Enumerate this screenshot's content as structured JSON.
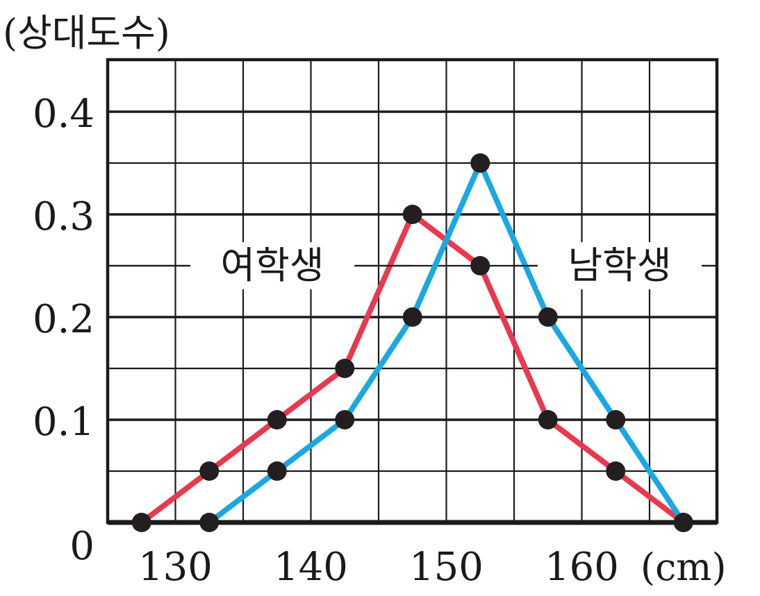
{
  "chart_data": {
    "type": "line",
    "ylabel": "(상대도수)",
    "xunit": "(cm)",
    "x_ticks": [
      "130",
      "140",
      "150",
      "160"
    ],
    "y_ticks": [
      "0",
      "0.1",
      "0.2",
      "0.3",
      "0.4"
    ],
    "xlim": [
      125,
      170
    ],
    "ylim": [
      0,
      0.45
    ],
    "x_grid_step": 5,
    "y_grid_step": 0.05,
    "grid": true,
    "series": [
      {
        "name": "여학생",
        "color": "#e8394f",
        "x": [
          127.5,
          132.5,
          137.5,
          142.5,
          147.5,
          152.5,
          157.5,
          162.5,
          167.5
        ],
        "y": [
          0,
          0.05,
          0.1,
          0.15,
          0.3,
          0.25,
          0.1,
          0.05,
          0
        ]
      },
      {
        "name": "남학생",
        "color": "#1aa8e2",
        "x": [
          132.5,
          137.5,
          142.5,
          147.5,
          152.5,
          157.5,
          162.5,
          167.5
        ],
        "y": [
          0,
          0.05,
          0.1,
          0.2,
          0.35,
          0.2,
          0.1,
          0
        ]
      }
    ]
  }
}
